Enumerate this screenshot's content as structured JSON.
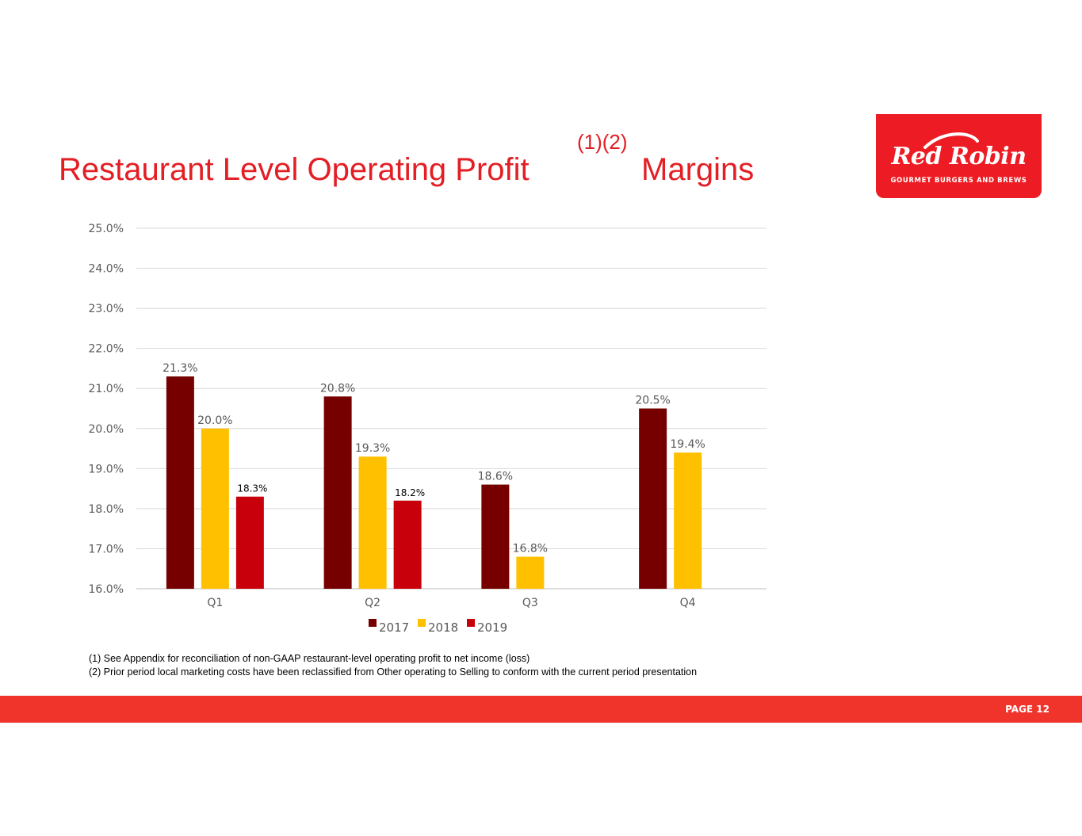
{
  "slide": {
    "title": "Restaurant Level Operating Profit",
    "title_superscript": "(1)(2)",
    "title_suffix": "Margins",
    "logo_alt": "Red Robin Gourmet Burgers and Brews",
    "footnotes": [
      "(1)  See Appendix for reconciliation of non-GAAP restaurant-level operating profit to net income (loss)",
      "(2)  Prior period local marketing costs have been reclassified from Other operating to Selling to conform with the current period presentation"
    ],
    "page_label": "PAGE 12"
  },
  "logo": {
    "brand": "Red Robin",
    "tagline": "GOURMET BURGERS AND BREWS",
    "color": "#ed1c24"
  },
  "colors": {
    "accent": "#e31e24",
    "footer_bar": "#f0342c"
  },
  "chart_data": {
    "type": "bar",
    "title": "",
    "xlabel": "",
    "ylabel": "",
    "categories": [
      "Q1",
      "Q2",
      "Q3",
      "Q4"
    ],
    "series": [
      {
        "name": "2017",
        "color": "#760000",
        "values": [
          21.3,
          20.8,
          18.6,
          20.5
        ],
        "labels": [
          "21.3%",
          "20.8%",
          "18.6%",
          "20.5%"
        ]
      },
      {
        "name": "2018",
        "color": "#ffc000",
        "values": [
          20.0,
          19.3,
          16.8,
          19.4
        ],
        "labels": [
          "20.0%",
          "19.3%",
          "16.8%",
          "19.4%"
        ]
      },
      {
        "name": "2019",
        "color": "#c8000b",
        "values": [
          18.3,
          18.2,
          null,
          null
        ],
        "labels": [
          "18.3%",
          "18.2%",
          null,
          null
        ]
      }
    ],
    "ylim": [
      16.0,
      25.0
    ],
    "yticks": [
      16.0,
      17.0,
      18.0,
      19.0,
      20.0,
      21.0,
      22.0,
      23.0,
      24.0,
      25.0
    ],
    "ytick_labels": [
      "16.0%",
      "17.0%",
      "18.0%",
      "19.0%",
      "20.0%",
      "21.0%",
      "22.0%",
      "23.0%",
      "24.0%",
      "25.0%"
    ],
    "grid": true,
    "legend": "bottom"
  }
}
